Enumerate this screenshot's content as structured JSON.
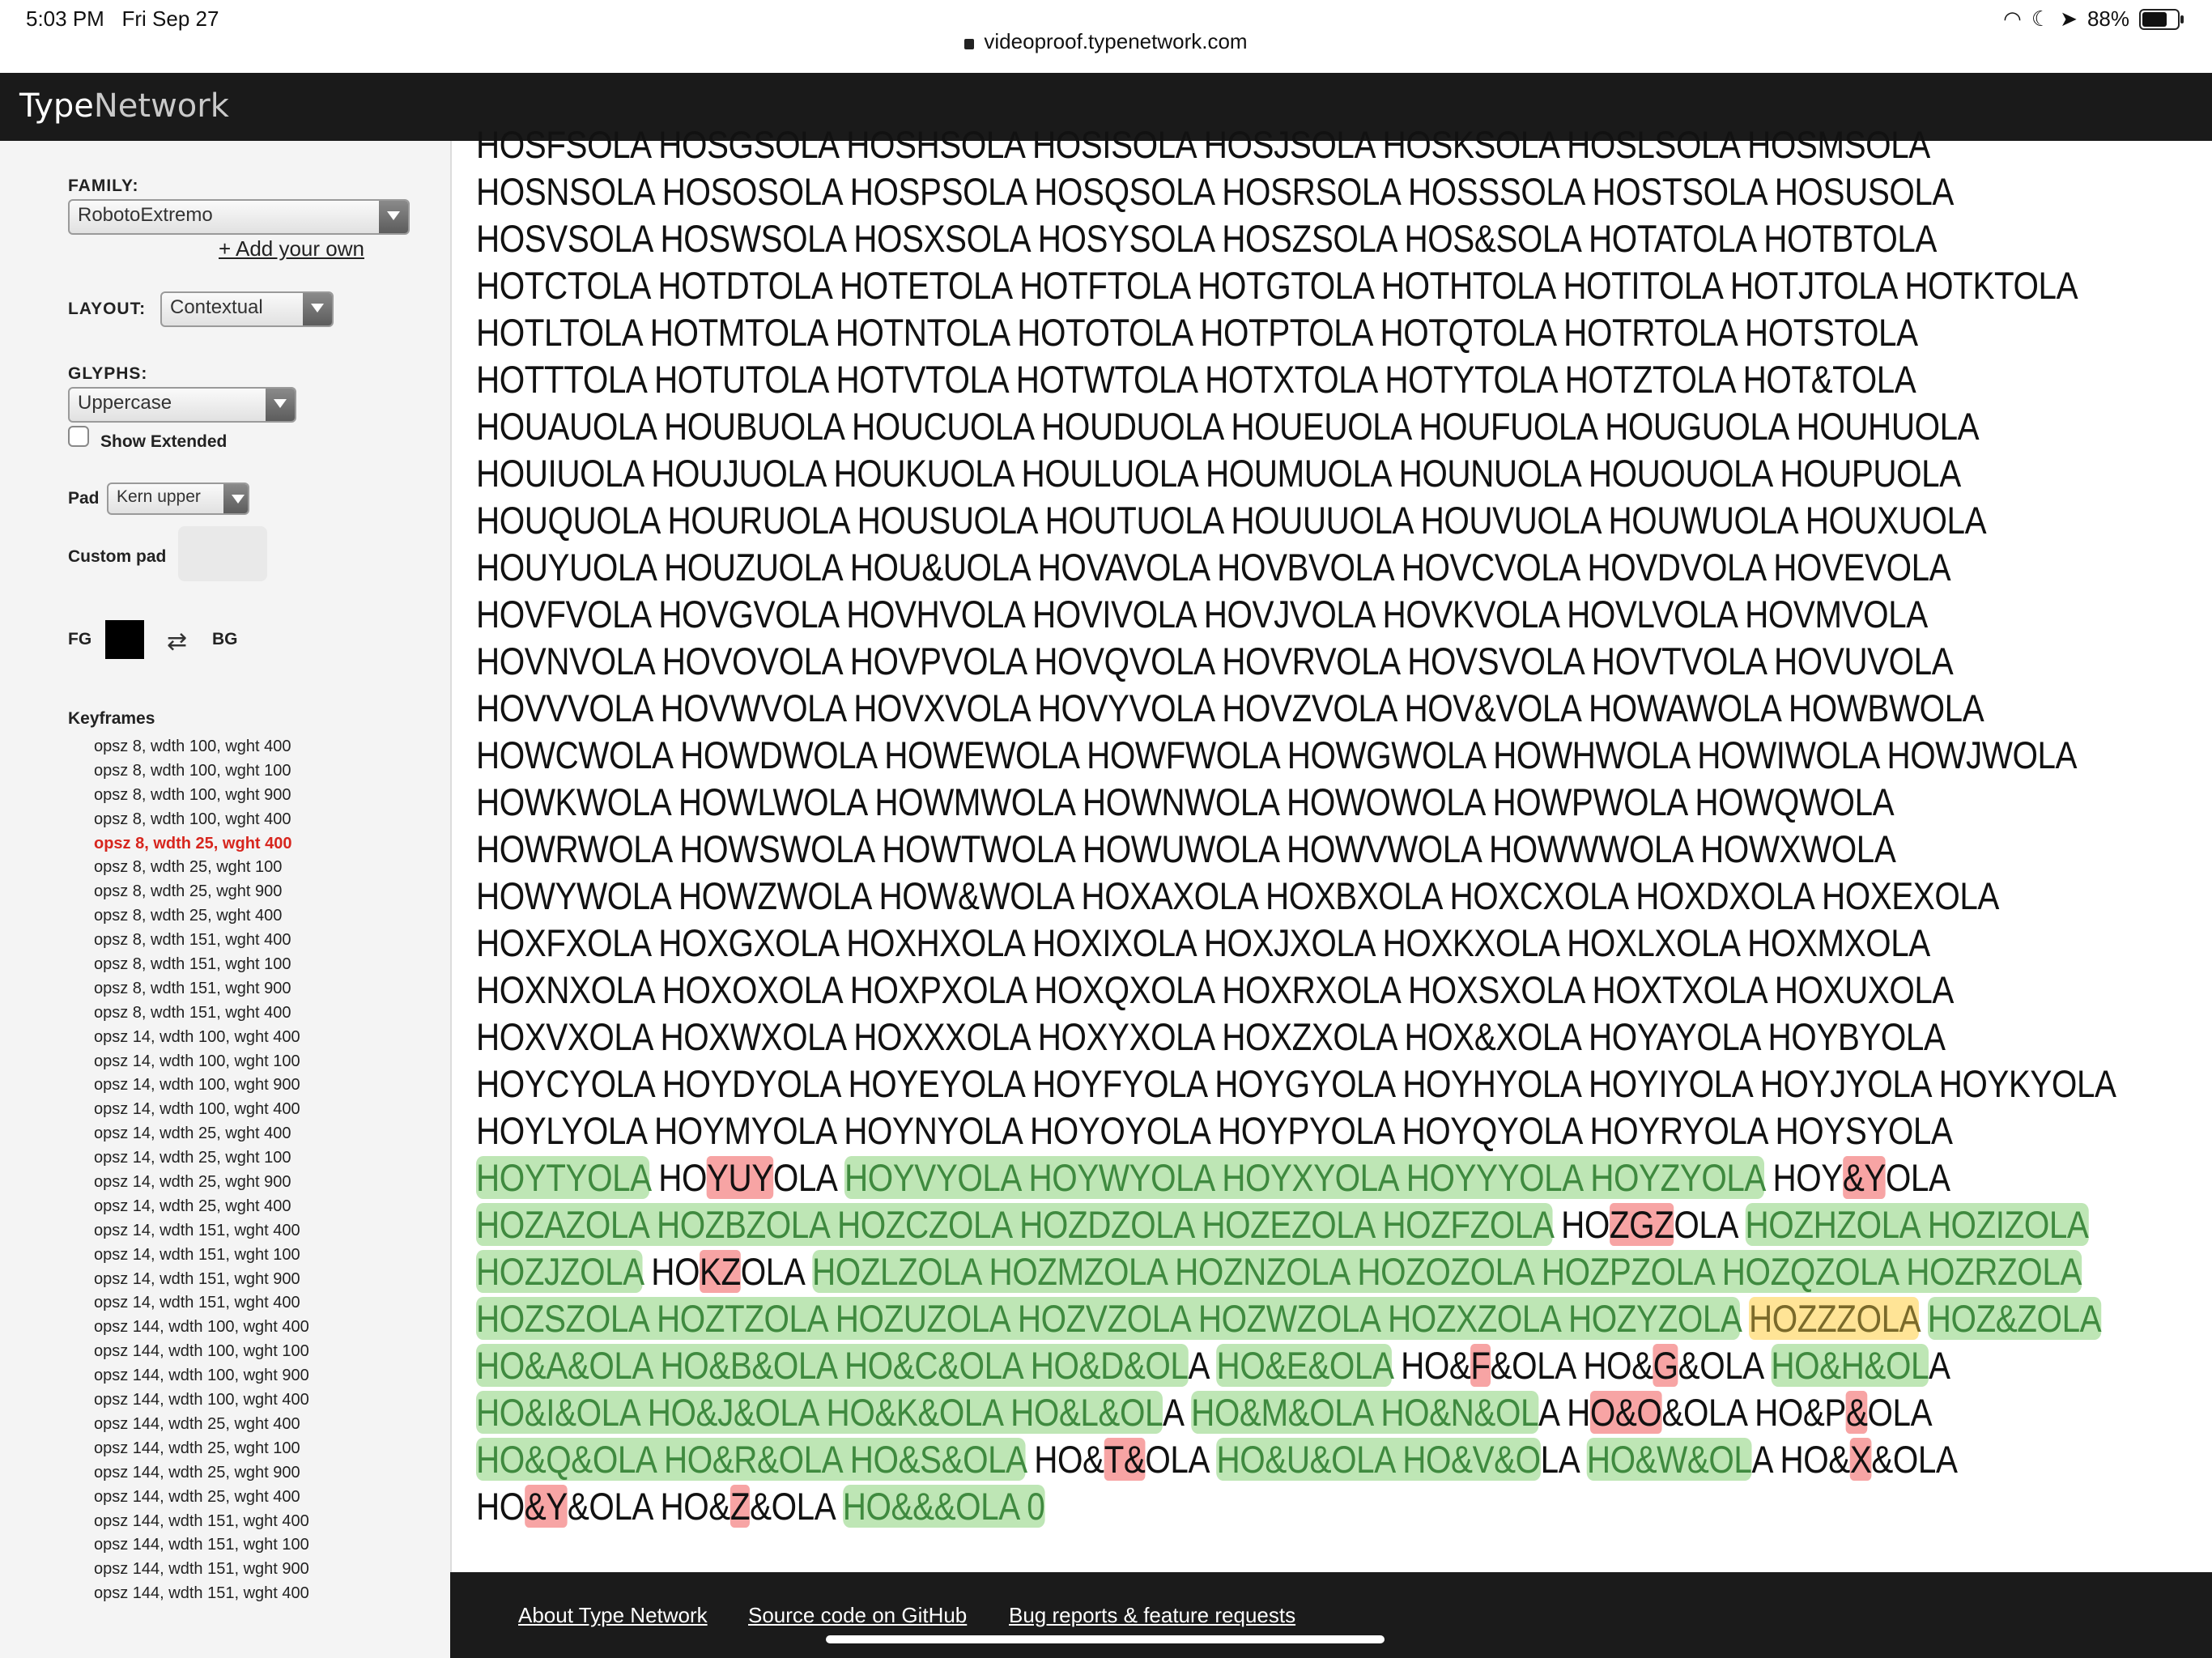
{
  "status_bar": {
    "time": "5:03 PM",
    "date": "Fri Sep 27",
    "url": "videoproof.typenetwork.com",
    "battery": "88%",
    "battery_level": 0.88
  },
  "header": {
    "logo_part1": "Type",
    "logo_part2": "Network"
  },
  "sidebar": {
    "family_label": "FAMILY:",
    "family_value": "RobotoExtremo",
    "add_your_own": "+ Add your own",
    "layout_label": "LAYOUT:",
    "layout_value": "Contextual",
    "glyphs_label": "GLYPHS:",
    "glyphs_value": "Uppercase",
    "show_extended_label": "Show Extended",
    "pad_label": "Pad",
    "pad_value": "Kern upper",
    "custom_pad_label": "Custom pad",
    "fg_label": "FG",
    "bg_label": "BG",
    "fg_color": "#000000",
    "keyframes_label": "Keyframes",
    "keyframes": [
      "opsz 8, wdth 100, wght 400",
      "opsz 8, wdth 100, wght 100",
      "opsz 8, wdth 100, wght 900",
      "opsz 8, wdth 100, wght 400",
      "opsz 8, wdth 25, wght 400",
      "opsz 8, wdth 25, wght 100",
      "opsz 8, wdth 25, wght 900",
      "opsz 8, wdth 25, wght 400",
      "opsz 8, wdth 151, wght 400",
      "opsz 8, wdth 151, wght 100",
      "opsz 8, wdth 151, wght 900",
      "opsz 8, wdth 151, wght 400",
      "opsz 14, wdth 100, wght 400",
      "opsz 14, wdth 100, wght 100",
      "opsz 14, wdth 100, wght 900",
      "opsz 14, wdth 100, wght 400",
      "opsz 14, wdth 25, wght 400",
      "opsz 14, wdth 25, wght 100",
      "opsz 14, wdth 25, wght 900",
      "opsz 14, wdth 25, wght 400",
      "opsz 14, wdth 151, wght 400",
      "opsz 14, wdth 151, wght 100",
      "opsz 14, wdth 151, wght 900",
      "opsz 14, wdth 151, wght 400",
      "opsz 144, wdth 100, wght 400",
      "opsz 144, wdth 100, wght 100",
      "opsz 144, wdth 100, wght 900",
      "opsz 144, wdth 100, wght 400",
      "opsz 144, wdth 25, wght 400",
      "opsz 144, wdth 25, wght 100",
      "opsz 144, wdth 25, wght 900",
      "opsz 144, wdth 25, wght 400",
      "opsz 144, wdth 151, wght 400",
      "opsz 144, wdth 151, wght 100",
      "opsz 144, wdth 151, wght 900",
      "opsz 144, wdth 151, wght 400"
    ],
    "active_keyframe_index": 4
  },
  "proof": {
    "lines": [
      [
        {
          "t": "HOSFSOLA HOSGSOLA HOSHSOLA HOSISOLA HOSJSOLA HOSKSOLA HOSLSOLA HOSMSOLA"
        }
      ],
      [
        {
          "t": "HOSNSOLA HOSOSOLA HOSPSOLA HOSQSOLA HOSRSOLA HOSSSOLA HOSTSOLA HOSUSOLA"
        }
      ],
      [
        {
          "t": "HOSVSOLA HOSWSOLA HOSXSOLA HOSYSOLA HOSZSOLA HOS&SOLA HOTATOLA HOTBTOLA"
        }
      ],
      [
        {
          "t": "HOTCTOLA HOTDTOLA HOTETOLA HOTFTOLA HOTGTOLA HOTHTOLA HOTITOLA HOTJTOLA HOTKTOLA"
        }
      ],
      [
        {
          "t": "HOTLTOLA HOTMTOLA HOTNTOLA HOTOTOLA HOTPTOLA HOTQTOLA HOTRTOLA HOTSTOLA"
        }
      ],
      [
        {
          "t": "HOTTTOLA HOTUTOLA HOTVTOLA HOTWTOLA HOTXTOLA HOTYTOLA HOTZTOLA HOT&TOLA"
        }
      ],
      [
        {
          "t": "HOUAUOLA HOUBUOLA HOUCUOLA HOUDUOLA HOUEUOLA HOUFUOLA HOUGUOLA HOUHUOLA"
        }
      ],
      [
        {
          "t": "HOUIUOLA HOUJUOLA HOUKUOLA HOULUOLA HOUMUOLA HOUNUOLA HOUOUOLA HOUPUOLA"
        }
      ],
      [
        {
          "t": "HOUQUOLA HOURUOLA HOUSUOLA HOUTUOLA HOUUUOLA HOUVUOLA HOUWUOLA HOUXUOLA"
        }
      ],
      [
        {
          "t": "HOUYUOLA HOUZUOLA HOU&UOLA HOVAVOLA HOVBVOLA HOVCVOLA HOVDVOLA HOVEVOLA"
        }
      ],
      [
        {
          "t": "HOVFVOLA HOVGVOLA HOVHVOLA HOVIVOLA HOVJVOLA HOVKVOLA HOVLVOLA HOVMVOLA"
        }
      ],
      [
        {
          "t": "HOVNVOLA HOVOVOLA HOVPVOLA HOVQVOLA HOVRVOLA HOVSVOLA HOVTVOLA HOVUVOLA"
        }
      ],
      [
        {
          "t": "HOVVVOLA HOVWVOLA HOVXVOLA HOVYVOLA HOVZVOLA HOV&VOLA HOWAWOLA HOWBWOLA"
        }
      ],
      [
        {
          "t": "HOWCWOLA HOWDWOLA HOWEWOLA HOWFWOLA HOWGWOLA HOWHWOLA HOWIWOLA HOWJWOLA"
        }
      ],
      [
        {
          "t": "HOWKWOLA HOWLWOLA HOWMWOLA HOWNWOLA HOWOWOLA HOWPWOLA HOWQWOLA"
        }
      ],
      [
        {
          "t": "HOWRWOLA HOWSWOLA HOWTWOLA HOWUWOLA HOWVWOLA HOWWWOLA HOWXWOLA"
        }
      ],
      [
        {
          "t": "HOWYWOLA HOWZWOLA HOW&WOLA HOXAXOLA HOXBXOLA HOXCXOLA HOXDXOLA HOXEXOLA"
        }
      ],
      [
        {
          "t": "HOXFXOLA HOXGXOLA HOXHXOLA HOXIXOLA HOXJXOLA HOXKXOLA HOXLXOLA HOXMXOLA"
        }
      ],
      [
        {
          "t": "HOXNXOLA HOXOXOLA HOXPXOLA HOXQXOLA HOXRXOLA HOXSXOLA HOXTXOLA HOXUXOLA"
        }
      ],
      [
        {
          "t": "HOXVXOLA HOXWXOLA HOXXXOLA HOXYXOLA HOXZXOLA HOX&XOLA HOYAYOLA HOYBYOLA"
        }
      ],
      [
        {
          "t": "HOYCYOLA HOYDYOLA HOYEYOLA HOYFYOLA HOYGYOLA HOYHYOLA HOYIYOLA HOYJYOLA HOYKYOLA"
        }
      ],
      [
        {
          "t": "HOYLYOLA HOYMYOLA HOYNYOLA HOYOYOLA HOYPYOLA HOYQYOLA HOYRYOLA HOYSYOLA"
        }
      ],
      [
        {
          "t": "HOYTYOLA",
          "h": "g"
        },
        {
          "t": " HO"
        },
        {
          "t": "YUY",
          "h": "r"
        },
        {
          "t": "OLA "
        },
        {
          "t": "HOYVYOLA HOYWYOLA HOYXYOLA HOYYYOLA HOYZYOLA",
          "h": "g"
        },
        {
          "t": " HOY"
        },
        {
          "t": "&Y",
          "h": "r"
        },
        {
          "t": "OLA"
        }
      ],
      [
        {
          "t": "HOZAZOLA HOZBZOLA HOZCZOLA HOZDZOLA HOZEZOLA HOZFZOLA",
          "h": "g"
        },
        {
          "t": " HO"
        },
        {
          "t": "ZGZ",
          "h": "r"
        },
        {
          "t": "OLA "
        },
        {
          "t": "HOZHZOLA HOZIZOLA",
          "h": "g"
        }
      ],
      [
        {
          "t": "HOZJZOLA",
          "h": "g"
        },
        {
          "t": " HO"
        },
        {
          "t": "KZ",
          "h": "r"
        },
        {
          "t": "OLA "
        },
        {
          "t": "HOZLZOLA HOZMZOLA HOZNZOLA HOZOZOLA HOZPZOLA HOZQZOLA HOZRZOLA",
          "h": "g"
        }
      ],
      [
        {
          "t": "HOZSZOLA HOZTZOLA HOZUZOLA HOZVZOLA HOZWZOLA HOZXZOLA HOZYZOLA",
          "h": "g"
        },
        {
          "t": " "
        },
        {
          "t": "HOZZZOLA",
          "h": "y"
        },
        {
          "t": " "
        },
        {
          "t": "HOZ&ZOLA",
          "h": "g"
        }
      ],
      [
        {
          "t": "HO&A&OLA HO&B&OLA HO&C&OLA HO&D&OL",
          "h": "g"
        },
        {
          "t": "A "
        },
        {
          "t": "HO&E&OLA",
          "h": "g"
        },
        {
          "t": " HO&"
        },
        {
          "t": "F",
          "h": "r"
        },
        {
          "t": "&OLA HO&"
        },
        {
          "t": "G",
          "h": "r"
        },
        {
          "t": "&OLA "
        },
        {
          "t": "HO&H&OL",
          "h": "g"
        },
        {
          "t": "A"
        }
      ],
      [
        {
          "t": "HO&I&OLA HO&J&OLA HO&K&OLA HO&L&OL",
          "h": "g"
        },
        {
          "t": "A "
        },
        {
          "t": "HO&M&OLA HO&N&OL",
          "h": "g"
        },
        {
          "t": "A H"
        },
        {
          "t": "O&O",
          "h": "r"
        },
        {
          "t": "&OLA HO&P"
        },
        {
          "t": "&",
          "h": "r"
        },
        {
          "t": "OLA"
        }
      ],
      [
        {
          "t": "HO&Q&OLA HO&R&OLA HO&S&OLA",
          "h": "g"
        },
        {
          "t": " HO&"
        },
        {
          "t": "T&",
          "h": "r"
        },
        {
          "t": "OLA "
        },
        {
          "t": "HO&U&OLA HO&V&O",
          "h": "g"
        },
        {
          "t": "LA "
        },
        {
          "t": "HO&W&OL",
          "h": "g"
        },
        {
          "t": "A HO&"
        },
        {
          "t": "X",
          "h": "r"
        },
        {
          "t": "&OLA"
        }
      ],
      [
        {
          "t": "HO"
        },
        {
          "t": "&Y",
          "h": "r"
        },
        {
          "t": "&OLA HO&"
        },
        {
          "t": "Z",
          "h": "r"
        },
        {
          "t": "&OLA "
        },
        {
          "t": "HO&&&OLA 0",
          "h": "g"
        }
      ]
    ]
  },
  "footer": {
    "about": "About Type Network",
    "source": "Source code on GitHub",
    "bugs": "Bug reports & feature requests"
  }
}
